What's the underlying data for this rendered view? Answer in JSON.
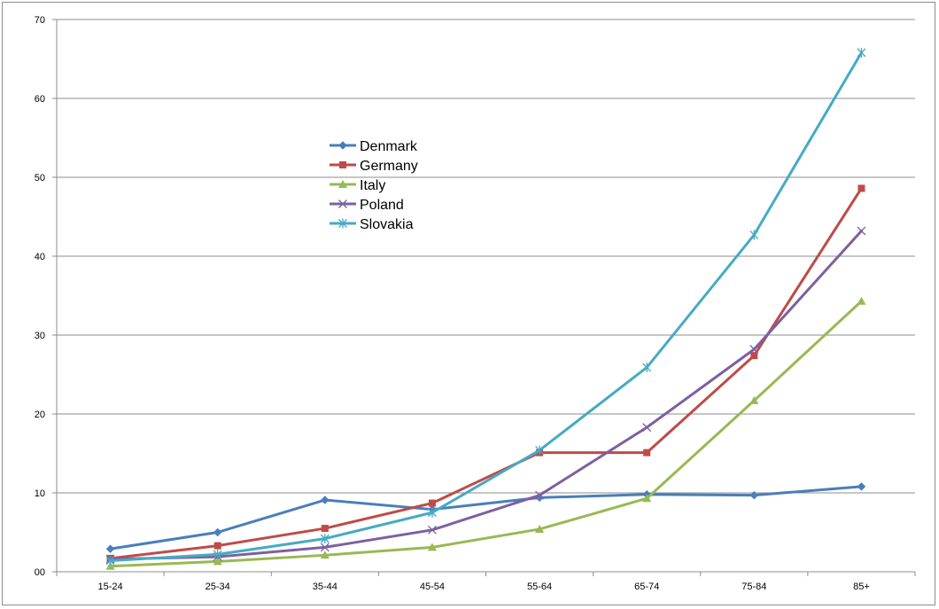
{
  "chart_data": {
    "type": "line",
    "categories": [
      "15-24",
      "25-34",
      "35-44",
      "45-54",
      "55-64",
      "65-74",
      "75-84",
      "85+"
    ],
    "ylim": [
      0,
      70
    ],
    "yticks": [
      "00",
      "10",
      "20",
      "30",
      "40",
      "50",
      "60",
      "70"
    ],
    "grid": "horizontal",
    "legend_position": "upper-left-inside",
    "series": [
      {
        "name": "Denmark",
        "color": "#4a7ebb",
        "marker": "diamond",
        "values": [
          2.9,
          5.0,
          9.1,
          7.9,
          9.4,
          9.8,
          9.7,
          10.8
        ]
      },
      {
        "name": "Germany",
        "color": "#be4b48",
        "marker": "square",
        "values": [
          1.7,
          3.3,
          5.5,
          8.7,
          15.1,
          15.1,
          27.4,
          48.6
        ]
      },
      {
        "name": "Italy",
        "color": "#98b954",
        "marker": "triangle",
        "values": [
          0.7,
          1.3,
          2.1,
          3.1,
          5.4,
          9.3,
          21.7,
          34.3
        ]
      },
      {
        "name": "Poland",
        "color": "#7d60a0",
        "marker": "x",
        "values": [
          1.6,
          1.9,
          3.1,
          5.3,
          9.7,
          18.3,
          28.2,
          43.2
        ]
      },
      {
        "name": "Slovakia",
        "color": "#46aac5",
        "marker": "star",
        "values": [
          1.4,
          2.2,
          4.2,
          7.5,
          15.4,
          25.9,
          42.7,
          65.8
        ]
      }
    ]
  }
}
